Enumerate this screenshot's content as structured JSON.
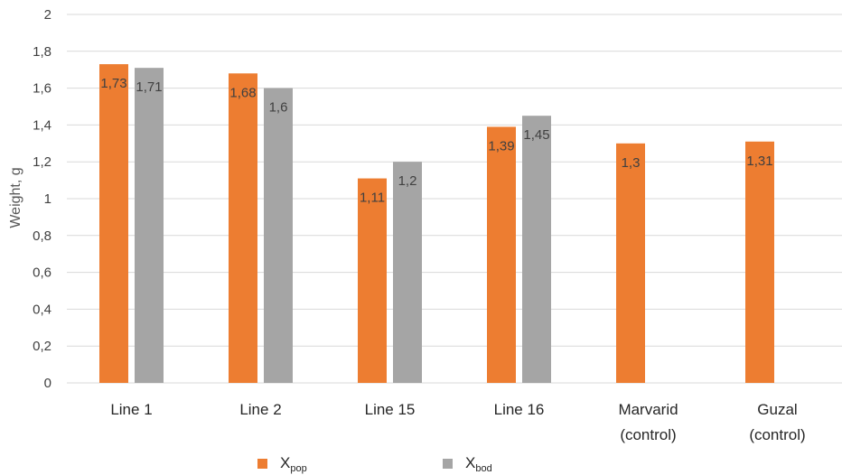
{
  "chart_data": {
    "type": "bar",
    "categories": [
      "Line 1",
      "Line 2",
      "Line 15",
      "Line 16",
      "Marvarid (control)",
      "Guzal (control)"
    ],
    "category_lines": [
      [
        "Line 1"
      ],
      [
        "Line 2"
      ],
      [
        "Line 15"
      ],
      [
        "Line 16"
      ],
      [
        "Marvarid",
        "(control)"
      ],
      [
        "Guzal",
        "(control)"
      ]
    ],
    "series": [
      {
        "name": "Xpop",
        "legend_main": "X",
        "legend_sub": "pop",
        "color": "#ED7D31",
        "values": [
          1.73,
          1.68,
          1.11,
          1.39,
          1.3,
          1.31
        ],
        "labels": [
          "1,73",
          "1,68",
          "1,11",
          "1,39",
          "1,3",
          "1,31"
        ]
      },
      {
        "name": "Xbod",
        "legend_main": "X",
        "legend_sub": "bod",
        "color": "#A5A5A5",
        "values": [
          1.71,
          1.6,
          1.2,
          1.45,
          null,
          null
        ],
        "labels": [
          "1,71",
          "1,6",
          "1,2",
          "1,45",
          "",
          ""
        ]
      }
    ],
    "ylabel": "Weight, g",
    "xlabel": "",
    "title": "",
    "ylim": [
      0,
      2
    ],
    "yticks": [
      0,
      0.2,
      0.4,
      0.6,
      0.8,
      1,
      1.2,
      1.4,
      1.6,
      1.8,
      2
    ],
    "ytick_labels": [
      "0",
      "0,2",
      "0,4",
      "0,6",
      "0,8",
      "1",
      "1,2",
      "1,4",
      "1,6",
      "1,8",
      "2"
    ],
    "grid": true,
    "gridline_color": "#D9D9D9",
    "legend_position": "bottom"
  }
}
